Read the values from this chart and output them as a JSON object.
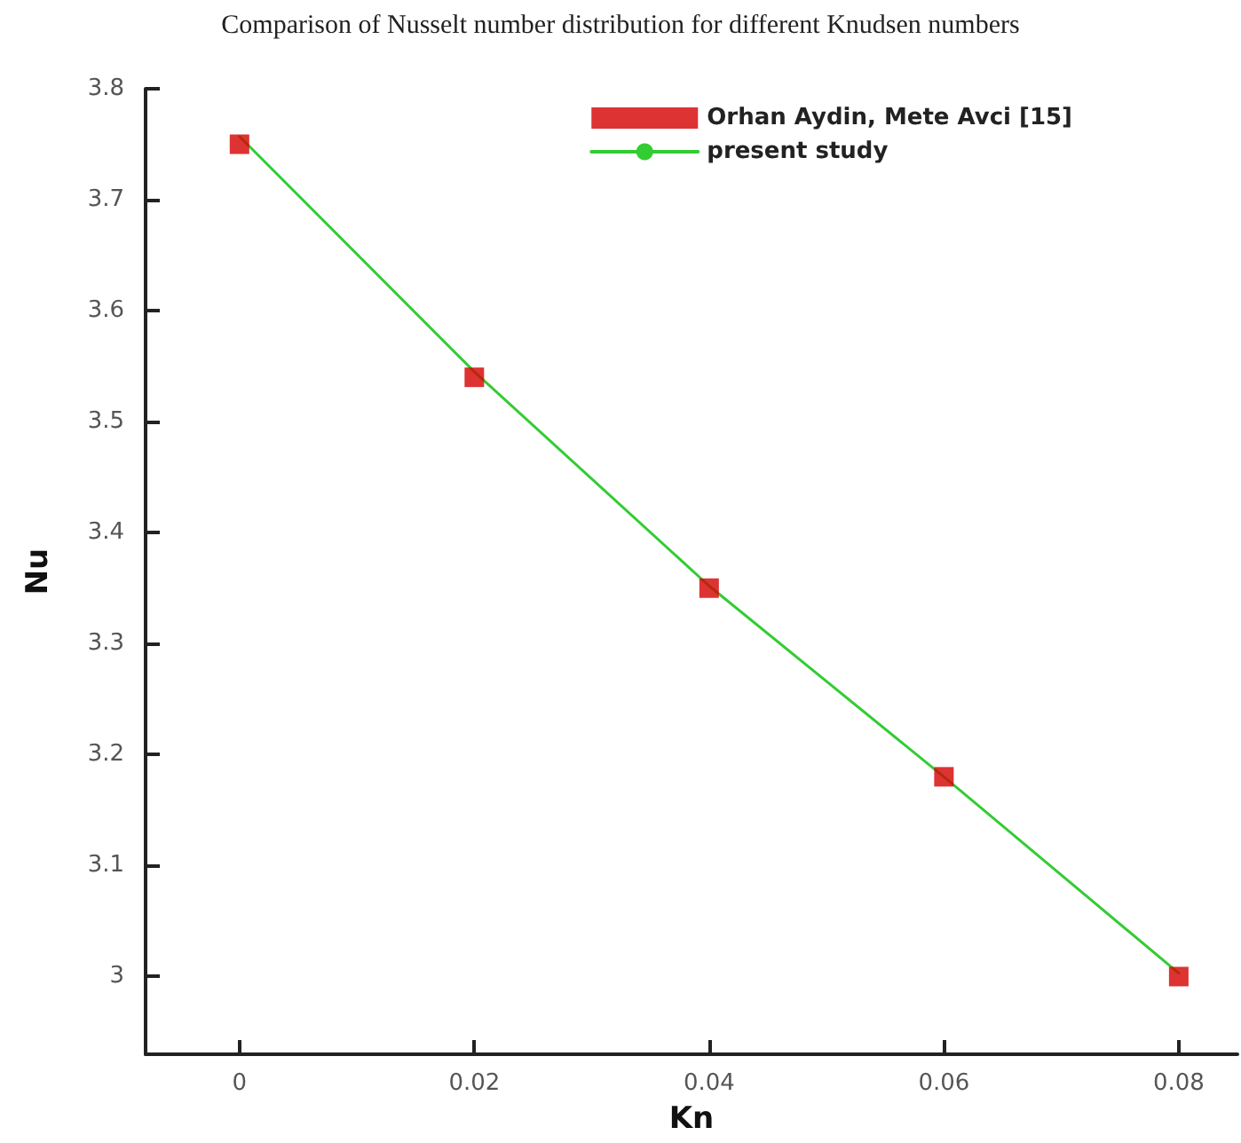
{
  "chart_data": {
    "type": "scatter",
    "title": "Comparison of Nusselt number distribution for different Knudsen numbers",
    "xlabel": "Kn",
    "ylabel": "Nu",
    "series": [
      {
        "name": "Orhan Aydin, Mete Avci [15]",
        "color": "#d40000",
        "marker": "square",
        "x": [
          0,
          0.02,
          0.04,
          0.06,
          0.08
        ],
        "values": [
          3.75,
          3.54,
          3.35,
          3.18,
          3.0
        ]
      },
      {
        "name": "present study",
        "type": "line",
        "color": "#33cc33",
        "marker": "none",
        "line_style": "solid",
        "x": [
          0,
          0.02,
          0.04,
          0.06,
          0.08
        ],
        "values": [
          3.757,
          3.545,
          3.352,
          3.18,
          3.003
        ]
      }
    ],
    "xlim": [
      -0.008,
      0.085
    ],
    "xticks": [
      0,
      0.02,
      0.04,
      0.06,
      0.08
    ],
    "ylim": [
      2.93,
      3.8
    ],
    "yticks": [
      3,
      3.1,
      3.2,
      3.3,
      3.4,
      3.5,
      3.6,
      3.7,
      3.8
    ],
    "grid": false,
    "legend": "top right"
  }
}
